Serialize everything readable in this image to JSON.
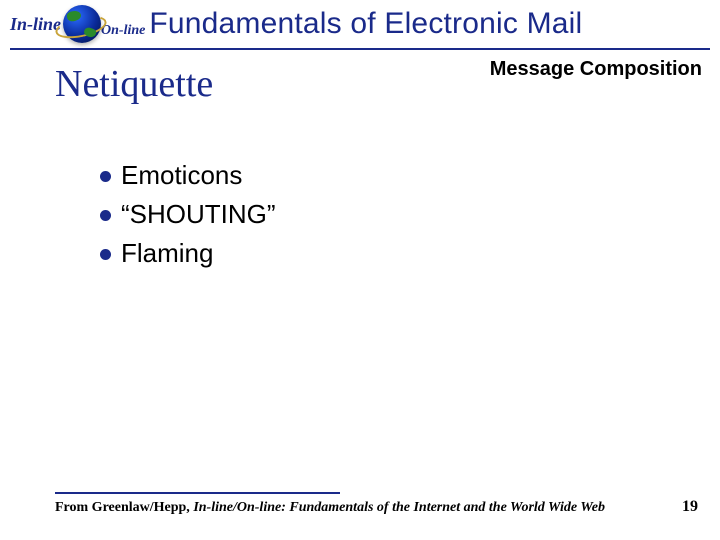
{
  "logo": {
    "inline_text": "In-line",
    "online_text": "On-line"
  },
  "title": "Fundamentals of Electronic Mail",
  "subtitle_right": "Message Composition",
  "section_title": "Netiquette",
  "bullets": [
    "Emoticons",
    "“SHOUTING”",
    "Flaming"
  ],
  "footer": {
    "prefix": "From Greenlaw/Hepp, ",
    "italic": "In-line/On-line: Fundamentals of the Internet and the World Wide Web"
  },
  "page_number": "19",
  "colors": {
    "accent": "#1a2a8a",
    "text": "#000000",
    "background": "#ffffff"
  }
}
